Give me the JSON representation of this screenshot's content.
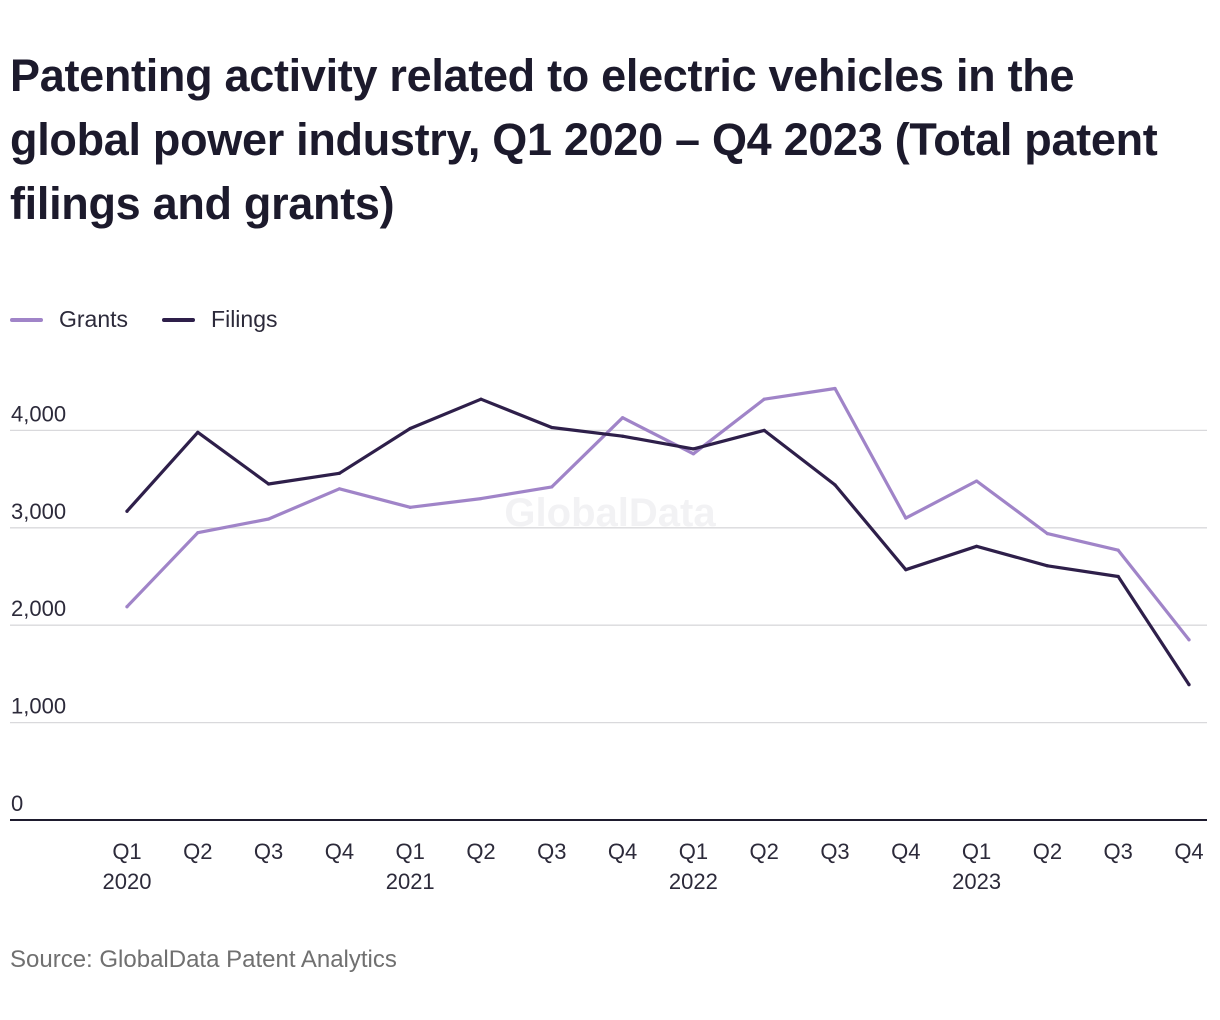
{
  "chart_data": {
    "type": "line",
    "title": "Patenting activity related to electric vehicles in the global power industry, Q1 2020 – Q4 2023 (Total patent filings and grants)",
    "categories": [
      "Q1 2020",
      "Q2 2020",
      "Q3 2020",
      "Q4 2020",
      "Q1 2021",
      "Q2 2021",
      "Q3 2021",
      "Q4 2021",
      "Q1 2022",
      "Q2 2022",
      "Q3 2022",
      "Q4 2022",
      "Q1 2023",
      "Q2 2023",
      "Q3 2023",
      "Q4 2023"
    ],
    "x_tick_labels": [
      {
        "quarter": "Q1",
        "year": "2020"
      },
      {
        "quarter": "Q2",
        "year": ""
      },
      {
        "quarter": "Q3",
        "year": ""
      },
      {
        "quarter": "Q4",
        "year": ""
      },
      {
        "quarter": "Q1",
        "year": "2021"
      },
      {
        "quarter": "Q2",
        "year": ""
      },
      {
        "quarter": "Q3",
        "year": ""
      },
      {
        "quarter": "Q4",
        "year": ""
      },
      {
        "quarter": "Q1",
        "year": "2022"
      },
      {
        "quarter": "Q2",
        "year": ""
      },
      {
        "quarter": "Q3",
        "year": ""
      },
      {
        "quarter": "Q4",
        "year": ""
      },
      {
        "quarter": "Q1",
        "year": "2023"
      },
      {
        "quarter": "Q2",
        "year": ""
      },
      {
        "quarter": "Q3",
        "year": ""
      },
      {
        "quarter": "Q4",
        "year": ""
      }
    ],
    "series": [
      {
        "name": "Grants",
        "color": "#a084c8",
        "values": [
          2190,
          2950,
          3090,
          3400,
          3210,
          3300,
          3420,
          4130,
          3760,
          4320,
          4430,
          3100,
          3480,
          2940,
          2770,
          1850
        ]
      },
      {
        "name": "Filings",
        "color": "#2e1f4a",
        "values": [
          3170,
          3980,
          3450,
          3560,
          4020,
          4320,
          4030,
          3940,
          3810,
          4000,
          3440,
          2570,
          2810,
          2610,
          2500,
          1390
        ]
      }
    ],
    "y_ticks": [
      0,
      1000,
      2000,
      3000,
      4000
    ],
    "y_tick_labels": [
      "0",
      "1,000",
      "2,000",
      "3,000",
      "4,000"
    ],
    "ylim": [
      0,
      4600
    ],
    "grid": true,
    "legend_position": "top-left",
    "source": "Source: GlobalData Patent Analytics",
    "watermark": "GlobalData"
  }
}
